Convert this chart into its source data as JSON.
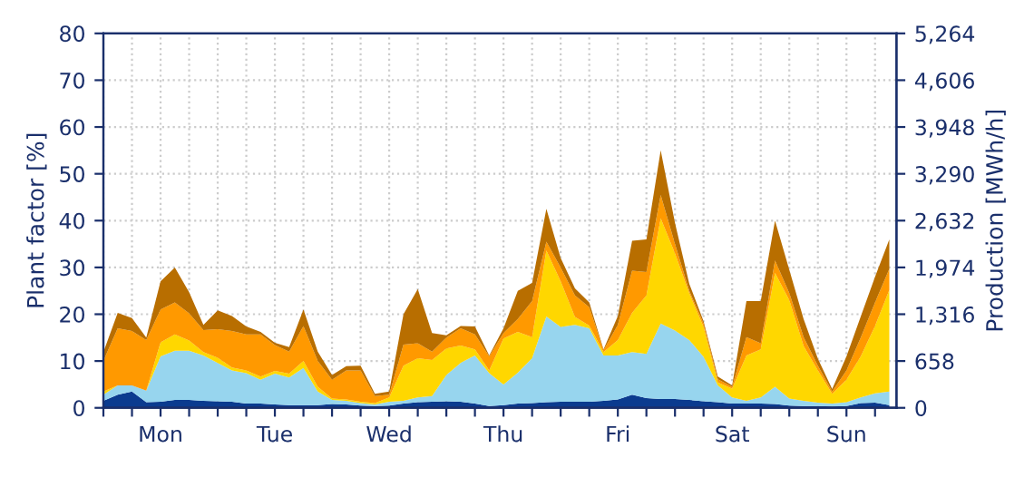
{
  "chart_data": {
    "type": "area",
    "stacked": true,
    "ylabel": "Plant factor [%]",
    "y2label": "Production [MWh/h]",
    "categories": [
      null,
      null,
      null,
      null,
      "Mon",
      null,
      null,
      null,
      null,
      null,
      null,
      null,
      "Tue",
      null,
      null,
      null,
      null,
      null,
      null,
      null,
      "Wed",
      null,
      null,
      null,
      null,
      null,
      null,
      null,
      "Thu",
      null,
      null,
      null,
      null,
      null,
      null,
      null,
      "Fri",
      null,
      null,
      null,
      null,
      null,
      null,
      null,
      "Sat",
      null,
      null,
      null,
      null,
      null,
      null,
      null,
      "Sun",
      null,
      null,
      null
    ],
    "series": [
      {
        "color": "#0b3b8f",
        "values": [
          1.5,
          2.8,
          3.5,
          1.2,
          1.3,
          1.7,
          1.7,
          1.5,
          1.4,
          1.3,
          0.9,
          0.9,
          0.7,
          0.6,
          0.6,
          0.6,
          0.8,
          0.7,
          0.5,
          0.4,
          0.5,
          0.9,
          1.2,
          1.3,
          1.4,
          1.3,
          0.9,
          0.4,
          0.6,
          0.9,
          1.0,
          1.2,
          1.3,
          1.3,
          1.3,
          1.5,
          1.8,
          2.8,
          2.1,
          1.9,
          1.9,
          1.7,
          1.4,
          1.2,
          0.9,
          0.9,
          0.9,
          0.8,
          0.5,
          0.4,
          0.4,
          0.3,
          0.4,
          1.0,
          1.1,
          0.6
        ]
      },
      {
        "color": "#97d5ee",
        "values": [
          1.3,
          2.0,
          1.3,
          2.5,
          9.7,
          10.5,
          10.5,
          9.7,
          8.2,
          6.7,
          6.5,
          5.1,
          6.6,
          5.9,
          7.9,
          2.9,
          0.9,
          0.8,
          0.5,
          0.3,
          0.8,
          0.6,
          1.0,
          1.2,
          5.6,
          8.3,
          10.3,
          7.0,
          4.4,
          6.6,
          9.6,
          18.3,
          16,
          16.4,
          15.7,
          9.7,
          9.4,
          9.1,
          9.4,
          16.1,
          14.6,
          12.8,
          9.5,
          3.6,
          1.3,
          0.6,
          1.3,
          3.7,
          1.5,
          1.1,
          0.7,
          0.6,
          0.8,
          1.2,
          2,
          2.9
        ]
      },
      {
        "color": "#ffd700",
        "values": [
          0.7,
          0,
          0,
          0,
          3,
          3.5,
          2.2,
          0.7,
          1.1,
          0.6,
          0.6,
          0.7,
          0.6,
          0.8,
          1.5,
          1.0,
          0.3,
          0.3,
          0.3,
          0.3,
          0.9,
          7.5,
          8.4,
          7.7,
          5.7,
          3.7,
          1.3,
          0.6,
          9.8,
          8.7,
          4.5,
          14.1,
          9.7,
          1.7,
          0.6,
          0.7,
          3.3,
          8.4,
          12.5,
          22.5,
          16.5,
          10,
          6.4,
          0.6,
          1.9,
          9.7,
          10.3,
          24.3,
          21,
          11.7,
          6.9,
          2.1,
          4.8,
          8.8,
          14.4,
          21.7
        ]
      },
      {
        "color": "#ff9900",
        "values": [
          6.5,
          12.2,
          11.6,
          10.8,
          7,
          6.8,
          5.8,
          4.7,
          6.1,
          7.8,
          7.7,
          9,
          5.5,
          4.7,
          7.5,
          5.5,
          4.0,
          6.2,
          6.7,
          1.5,
          0.6,
          4.5,
          3.2,
          1.8,
          2.3,
          3.7,
          3.2,
          3.0,
          1.2,
          2.8,
          7.7,
          1.9,
          3,
          4.6,
          3.9,
          0.4,
          3.2,
          9.0,
          5,
          5,
          2,
          0.5,
          0.7,
          0.7,
          0.4,
          3.9,
          1.3,
          2.7,
          1.5,
          1.9,
          1,
          0.5,
          2,
          4,
          5,
          4.5
        ]
      },
      {
        "color": "#b86e00",
        "values": [
          1.9,
          3.3,
          2.8,
          0.5,
          6,
          7.5,
          4.5,
          1.1,
          4.0,
          3.2,
          1.7,
          0.5,
          0.5,
          1.0,
          3.5,
          2.0,
          1.0,
          0.9,
          1.0,
          0.5,
          0.7,
          6.5,
          11.6,
          4.0,
          0.5,
          0.5,
          1.7,
          0.2,
          1.0,
          6,
          3.9,
          7,
          2,
          1.5,
          1,
          0.2,
          1.9,
          6.4,
          7,
          9.5,
          4.5,
          1.5,
          0.5,
          0.6,
          0.3,
          7.7,
          9.0,
          8.5,
          5,
          3.9,
          1.5,
          0.5,
          3,
          4.5,
          5.5,
          6.3
        ]
      }
    ],
    "ylim": [
      0,
      80
    ],
    "yticks": [
      0,
      10,
      20,
      30,
      40,
      50,
      60,
      70,
      80
    ],
    "y2lim": [
      0,
      5264
    ],
    "y2ticks": [
      {
        "value": 0,
        "label": "0"
      },
      {
        "value": 658,
        "label": "658"
      },
      {
        "value": 1316,
        "label": "1,316"
      },
      {
        "value": 1974,
        "label": "1,974"
      },
      {
        "value": 2632,
        "label": "2,632"
      },
      {
        "value": 3290,
        "label": "3,290"
      },
      {
        "value": 3948,
        "label": "3,948"
      },
      {
        "value": 4606,
        "label": "4,606"
      },
      {
        "value": 5264,
        "label": "5,264"
      }
    ],
    "grid": true
  }
}
